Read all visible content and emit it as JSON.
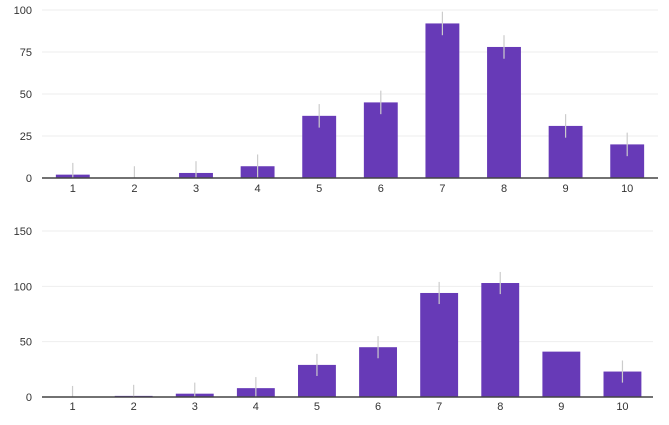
{
  "colors": {
    "bar": "#673ab7",
    "error_bar": "#cccccc",
    "grid": "#eeeeee",
    "axis": "#444444",
    "text": "#333333"
  },
  "chart_data": [
    {
      "type": "bar",
      "categories": [
        "1",
        "2",
        "3",
        "4",
        "5",
        "6",
        "7",
        "8",
        "9",
        "10"
      ],
      "values": [
        2,
        0,
        3,
        7,
        37,
        45,
        92,
        78,
        31,
        20
      ],
      "error": [
        7,
        7,
        7,
        7,
        7,
        7,
        7,
        7,
        7,
        7
      ],
      "yticks": [
        0,
        25,
        50,
        75,
        100
      ],
      "ylim": [
        0,
        100
      ],
      "grid": true,
      "xlabel": "",
      "ylabel": ""
    },
    {
      "type": "bar",
      "categories": [
        "1",
        "2",
        "3",
        "4",
        "5",
        "6",
        "7",
        "8",
        "9",
        "10"
      ],
      "values": [
        0,
        1,
        3,
        8,
        29,
        45,
        94,
        103,
        41,
        23
      ],
      "error": [
        10,
        10,
        10,
        10,
        10,
        10,
        10,
        10,
        0,
        10
      ],
      "yticks": [
        0,
        50,
        100,
        150
      ],
      "ylim": [
        0,
        150
      ],
      "grid": true,
      "xlabel": "",
      "ylabel": ""
    }
  ]
}
